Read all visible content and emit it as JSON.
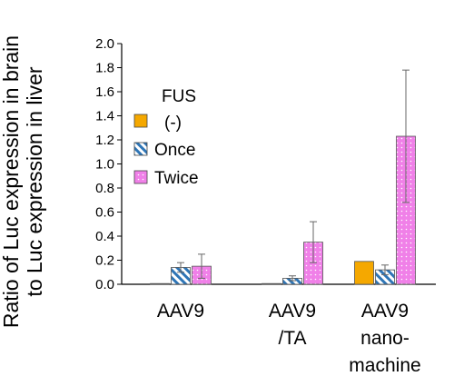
{
  "chart_data": {
    "type": "bar",
    "title": "",
    "ylabel_lines": [
      "Ratio of Luc expression in brain",
      "to Luc expression in liver"
    ],
    "xlabel": "",
    "ylim": [
      0,
      2.0
    ],
    "yticks": [
      "0.0",
      "0.2",
      "0.4",
      "0.6",
      "0.8",
      "1.0",
      "1.2",
      "1.4",
      "1.6",
      "1.8",
      "2.0"
    ],
    "categories": [
      [
        "AAV9"
      ],
      [
        "AAV9",
        "/TA"
      ],
      [
        "AAV9",
        "nano-",
        "machine"
      ]
    ],
    "legend_title_lines": [
      "FUS",
      "(-)"
    ],
    "legend_position": "left-middle",
    "series": [
      {
        "name": "(-)",
        "values": [
          0.0,
          0.0,
          0.19
        ],
        "errors": [
          0.0,
          0.0,
          0.0
        ],
        "color": "#F5A800",
        "pattern": "solid"
      },
      {
        "name": "Once",
        "values": [
          0.14,
          0.05,
          0.12
        ],
        "errors": [
          0.04,
          0.02,
          0.04
        ],
        "color": "#2E75B6",
        "pattern": "diagonal-stripes"
      },
      {
        "name": "Twice",
        "values": [
          0.15,
          0.35,
          1.23
        ],
        "errors": [
          0.1,
          0.17,
          0.55
        ],
        "color": "#F080E8",
        "pattern": "dotted"
      }
    ]
  }
}
